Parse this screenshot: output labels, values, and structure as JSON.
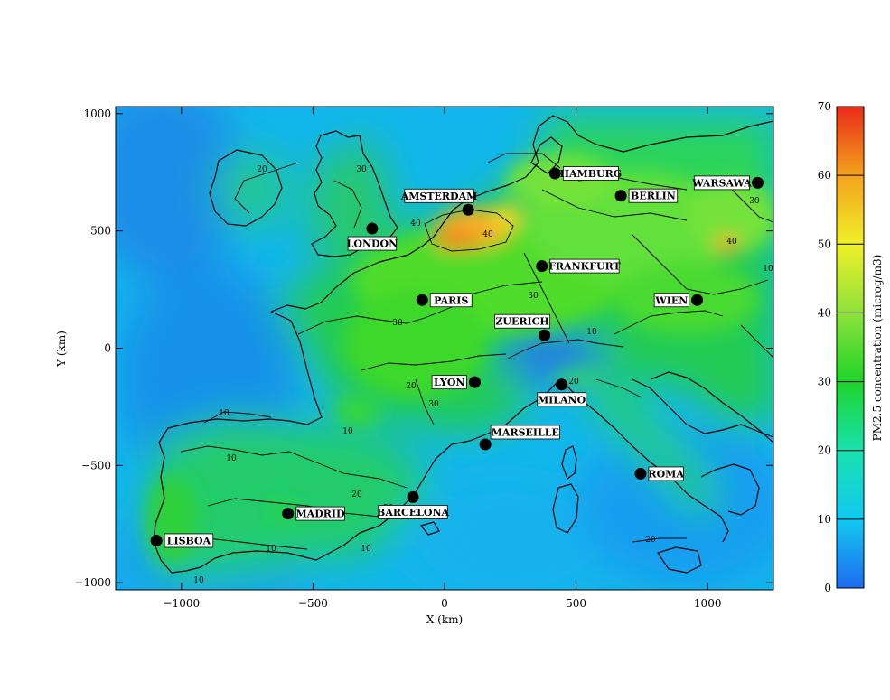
{
  "x_axis": {
    "label": "X (km)",
    "range": [
      -1250,
      1250
    ],
    "ticks": [
      -1000,
      -500,
      0,
      500,
      1000
    ],
    "tick_labels": [
      "−1000",
      "−500",
      "0",
      "500",
      "1000"
    ]
  },
  "y_axis": {
    "label": "Y (km)",
    "range": [
      -1030,
      1030
    ],
    "ticks": [
      1000,
      500,
      0,
      -500,
      -1000
    ],
    "tick_labels": [
      "1000",
      "500",
      "0",
      "−500",
      "−1000"
    ]
  },
  "colorbar": {
    "label": "PM2.5 concentration (microg/m3)",
    "range": [
      0,
      70
    ],
    "ticks": [
      0,
      10,
      20,
      30,
      40,
      50,
      60,
      70
    ],
    "tick_labels": [
      "0",
      "10",
      "20",
      "30",
      "40",
      "50",
      "60",
      "70"
    ],
    "stops": [
      {
        "v": 0,
        "color": "#1e6cf0"
      },
      {
        "v": 10,
        "color": "#12c8f0"
      },
      {
        "v": 20,
        "color": "#18e2b0"
      },
      {
        "v": 30,
        "color": "#1ed42a"
      },
      {
        "v": 40,
        "color": "#8ee23a"
      },
      {
        "v": 50,
        "color": "#f0f028"
      },
      {
        "v": 60,
        "color": "#f4a21e"
      },
      {
        "v": 70,
        "color": "#ea2a18"
      }
    ]
  },
  "cities": [
    {
      "name": "LONDON",
      "x": -275,
      "y": 510
    },
    {
      "name": "AMSTERDAM",
      "x": 90,
      "y": 590
    },
    {
      "name": "HAMBURG",
      "x": 420,
      "y": 745
    },
    {
      "name": "BERLIN",
      "x": 670,
      "y": 650
    },
    {
      "name": "WARSAWA",
      "x": 1190,
      "y": 705
    },
    {
      "name": "FRANKFURT",
      "x": 370,
      "y": 350
    },
    {
      "name": "PARIS",
      "x": -85,
      "y": 205
    },
    {
      "name": "WIEN",
      "x": 960,
      "y": 205
    },
    {
      "name": "ZUERICH",
      "x": 380,
      "y": 55
    },
    {
      "name": "LYON",
      "x": 115,
      "y": -145
    },
    {
      "name": "MILANO",
      "x": 445,
      "y": -155
    },
    {
      "name": "MARSEILLE",
      "x": 155,
      "y": -410
    },
    {
      "name": "ROMA",
      "x": 745,
      "y": -535
    },
    {
      "name": "BARCELONA",
      "x": -120,
      "y": -635
    },
    {
      "name": "MADRID",
      "x": -595,
      "y": -705
    },
    {
      "name": "LISBOA",
      "x": -1095,
      "y": -820
    }
  ],
  "contour_labels": [
    "10",
    "20",
    "30",
    "40",
    "40",
    "40",
    "30",
    "20",
    "10",
    "10",
    "20",
    "30",
    "10",
    "20",
    "30",
    "30",
    "10",
    "20",
    "10",
    "10",
    "20",
    "10"
  ]
}
